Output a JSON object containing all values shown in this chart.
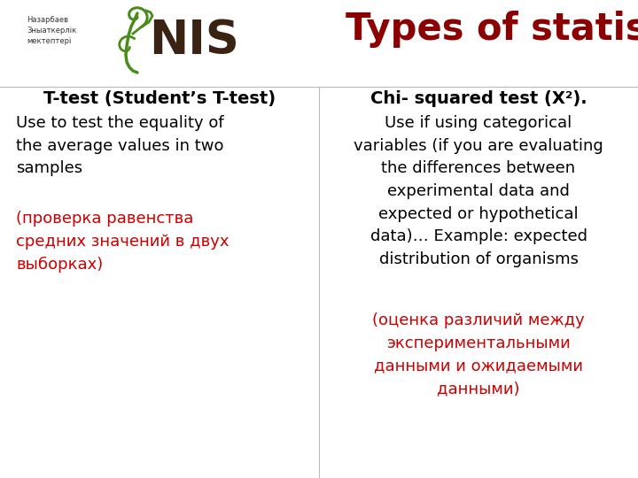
{
  "title": "Types of statistical test",
  "title_color": "#8B0000",
  "title_fontsize": 30,
  "background_color": "#FFFFFF",
  "col1_header": "T-test (Student’s T-test)",
  "col2_header": "Chi- squared test (X²).",
  "col1_body_black": "Use to test the equality of\nthe average values in two\nsamples",
  "col1_body_red": "(проверка равенства\nсредних значений в двух\nвыборках)",
  "col2_body_black": "Use if using categorical\nvariables (if you are evaluating\nthe differences between\nexperimental data and\nexpected or hypothetical\ndata)… Example: expected\ndistribution of organisms",
  "col2_body_red": "(оценка различий между\nэкспериментальными\nданными и ожидаемыми\nданными)",
  "header_fontsize": 14,
  "body_fontsize": 13,
  "black_color": "#000000",
  "red_color": "#CC0000",
  "logo_text": "Назарбаев\nЗныаткерлік\nмектептері",
  "nis_color": "#3B2314",
  "green_color": "#4A8C1C"
}
